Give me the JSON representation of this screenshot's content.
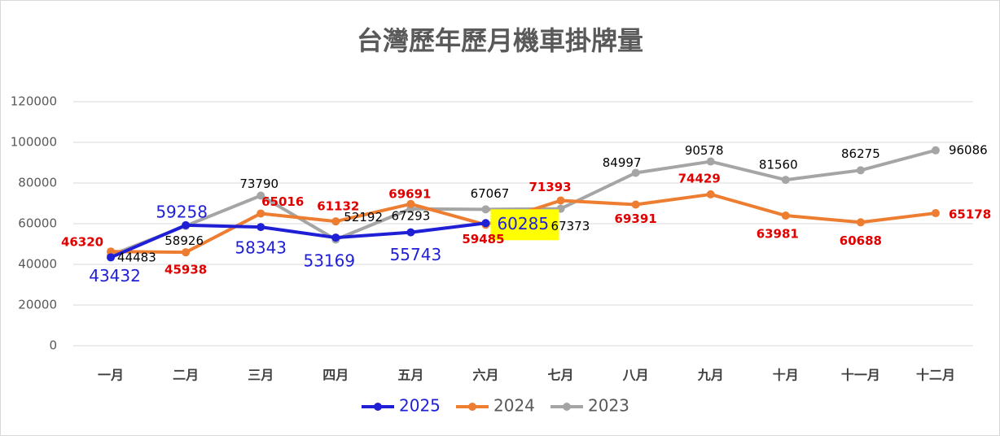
{
  "chart_data": {
    "type": "line",
    "title": "台灣歷年歷月機車掛牌量",
    "categories": [
      "一月",
      "二月",
      "三月",
      "四月",
      "五月",
      "六月",
      "七月",
      "八月",
      "九月",
      "十月",
      "十一月",
      "十二月"
    ],
    "series": [
      {
        "name": "2025",
        "color": "#1f1fd6",
        "values": [
          43432,
          59258,
          58343,
          53169,
          55743,
          60285,
          null,
          null,
          null,
          null,
          null,
          null
        ]
      },
      {
        "name": "2024",
        "color": "#ed7d31",
        "values": [
          46320,
          45938,
          65016,
          61132,
          69691,
          59485,
          71393,
          69391,
          74429,
          63981,
          60688,
          65178
        ]
      },
      {
        "name": "2023",
        "color": "#a5a5a5",
        "values": [
          44483,
          58926,
          73790,
          52192,
          67293,
          67067,
          67373,
          84997,
          90578,
          81560,
          86275,
          96086
        ]
      }
    ],
    "ylim": [
      0,
      120000
    ],
    "yticks": [
      0,
      20000,
      40000,
      60000,
      80000,
      100000,
      120000
    ],
    "grid": true,
    "legend": "bottom"
  }
}
